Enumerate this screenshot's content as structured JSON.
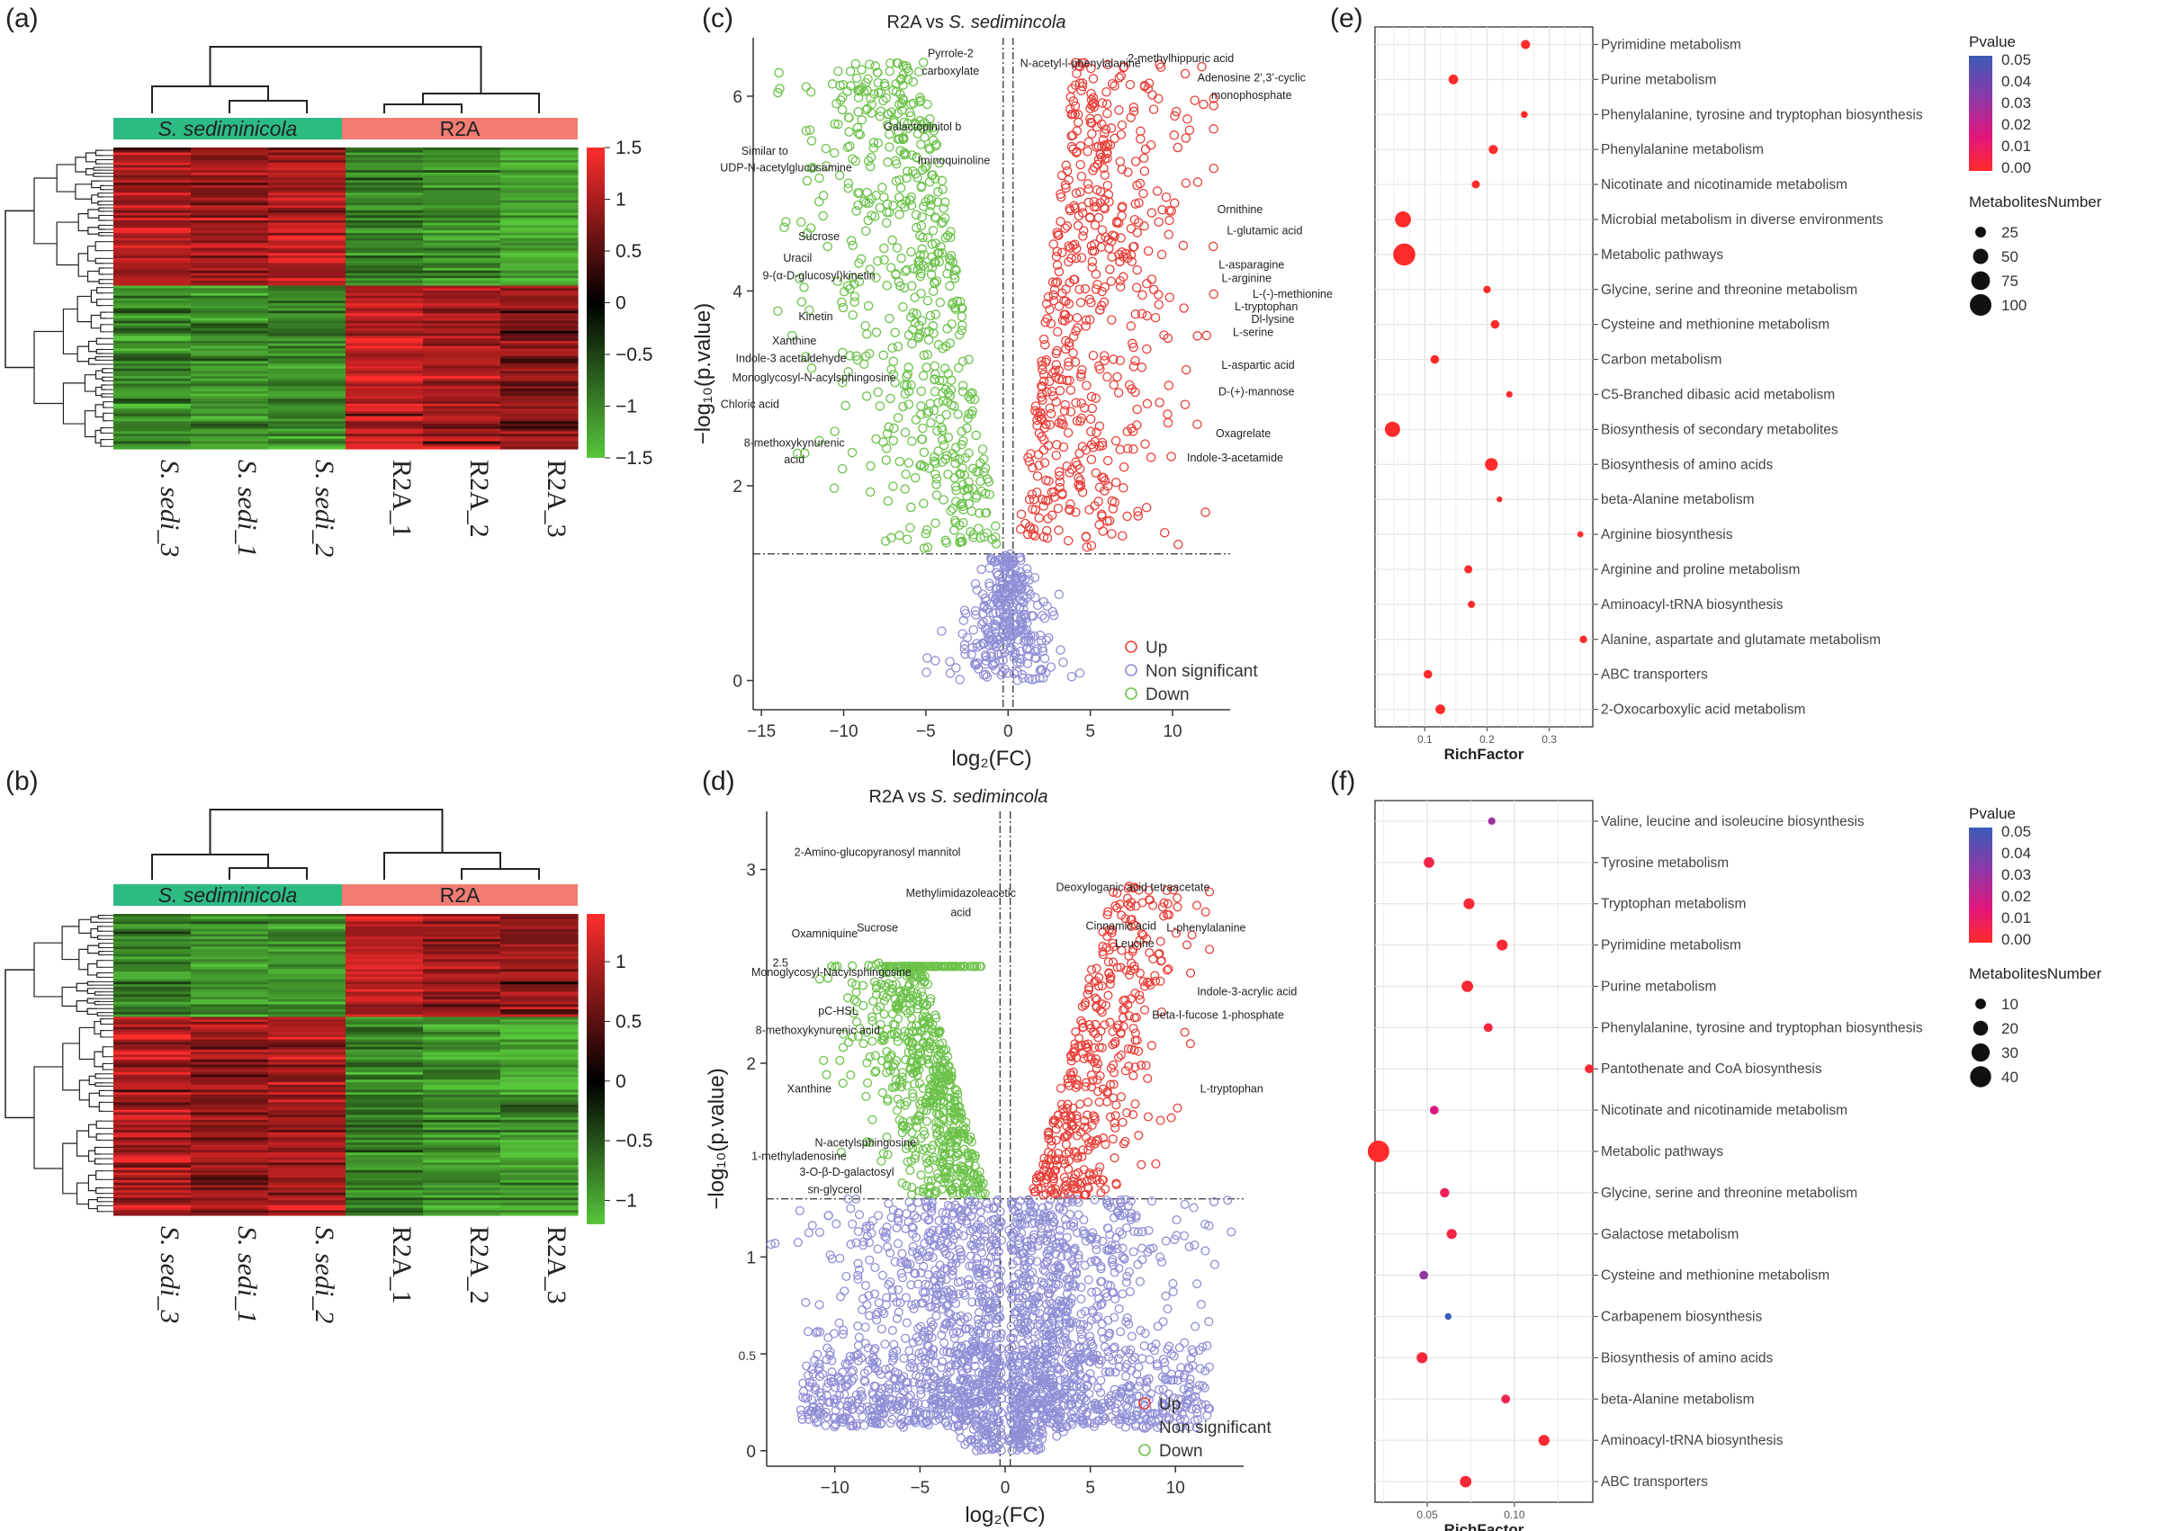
{
  "chart_data": [
    {
      "id": "a",
      "panel_label": "(a)",
      "type": "heatmap",
      "groups": [
        {
          "label": "S. sediminicola",
          "color": "#2dbb84"
        },
        {
          "label": "R2A",
          "color": "#f07c74"
        }
      ],
      "columns": [
        "S. sedi_3",
        "S. sedi_1",
        "S. sedi_2",
        "R2A_1",
        "R2A_2",
        "R2A_3"
      ],
      "colorbar": {
        "ticks": [
          "1.5",
          "1",
          "0.5",
          "0",
          "−0.5",
          "−1",
          "−1.5"
        ],
        "min": -1.5,
        "max": 1.5
      },
      "row_split_fraction": 0.46
    },
    {
      "id": "b",
      "panel_label": "(b)",
      "type": "heatmap",
      "groups": [
        {
          "label": "S. sediminicola",
          "color": "#2dbb84"
        },
        {
          "label": "R2A",
          "color": "#f07c74"
        }
      ],
      "columns": [
        "S. sedi_3",
        "S. sedi_1",
        "S. sedi_2",
        "R2A_1",
        "R2A_2",
        "R2A_3"
      ],
      "colorbar": {
        "ticks": [
          "1",
          "0.5",
          "0",
          "−0.5",
          "−1"
        ],
        "min": -1.2,
        "max": 1.4
      },
      "row_split_fraction": 0.34
    },
    {
      "id": "c",
      "panel_label": "(c)",
      "type": "scatter",
      "title_prefix": "R2A vs ",
      "title_species": "S. sedimincola",
      "xlabel": "log₂(FC)",
      "ylabel": "−log₁₀(p.value)",
      "xlim": [
        -15.5,
        13.5
      ],
      "ylim": [
        -0.3,
        6.6
      ],
      "xticks": [
        "−15",
        "−10",
        "−5",
        "0",
        "5",
        "10"
      ],
      "yticks": [
        "0",
        "2",
        "4",
        "6"
      ],
      "hline": 1.3,
      "vlines": [
        -0.3,
        0.3
      ],
      "legend": [
        {
          "label": "Up",
          "color": "#e8403a"
        },
        {
          "label": "Non significant",
          "color": "#8f8fd6"
        },
        {
          "label": "Down",
          "color": "#6cc24a"
        }
      ],
      "counts": {
        "up": 560,
        "down": 600,
        "ns": 330
      },
      "annotations": [
        {
          "text": "Pyrrole-2",
          "x": -3.5,
          "y": 6.4
        },
        {
          "text": "carboxylate",
          "x": -3.5,
          "y": 6.22
        },
        {
          "text": "N-acetyl-l-phenylalanine",
          "x": 4.4,
          "y": 6.3
        },
        {
          "text": "2-methylhippuric acid",
          "x": 10.5,
          "y": 6.35
        },
        {
          "text": "Adenosine 2’,3’-cyclic",
          "x": 14.8,
          "y": 6.15
        },
        {
          "text": "monophosphate",
          "x": 14.8,
          "y": 5.97
        },
        {
          "text": "Galactopinitol b",
          "x": -5.2,
          "y": 5.65
        },
        {
          "text": "Similar to",
          "x": -14.8,
          "y": 5.4
        },
        {
          "text": "UDP-N-acetylglucosamine",
          "x": -13.5,
          "y": 5.23
        },
        {
          "text": "Iminoquinoline",
          "x": -3.3,
          "y": 5.3
        },
        {
          "text": "Ornithine",
          "x": 14.1,
          "y": 4.8
        },
        {
          "text": "L-glutamic acid",
          "x": 15.6,
          "y": 4.58
        },
        {
          "text": "Sucrose",
          "x": -11.5,
          "y": 4.52
        },
        {
          "text": "Uracil",
          "x": -12.8,
          "y": 4.3
        },
        {
          "text": "9-(α-D-glucosyl)kinetin",
          "x": -11.5,
          "y": 4.12
        },
        {
          "text": "L-asparagine",
          "x": 14.8,
          "y": 4.23
        },
        {
          "text": "L-arginine",
          "x": 14.5,
          "y": 4.09
        },
        {
          "text": "L-(-)-methionine",
          "x": 17.3,
          "y": 3.93
        },
        {
          "text": "L-tryptophan",
          "x": 15.7,
          "y": 3.8
        },
        {
          "text": "Dl-lysine",
          "x": 16.1,
          "y": 3.67
        },
        {
          "text": "L-serine",
          "x": 14.9,
          "y": 3.54
        },
        {
          "text": "Kinetin",
          "x": -11.7,
          "y": 3.7
        },
        {
          "text": "Xanthine",
          "x": -13.0,
          "y": 3.45
        },
        {
          "text": "Indole-3 acetaldehyde",
          "x": -13.2,
          "y": 3.27
        },
        {
          "text": "L-aspartic acid",
          "x": 15.2,
          "y": 3.2
        },
        {
          "text": "Monoglycosyl-N-acylsphingosine",
          "x": -11.8,
          "y": 3.07
        },
        {
          "text": "D-(+)-mannose",
          "x": 15.1,
          "y": 2.93
        },
        {
          "text": "Chloric acid",
          "x": -15.7,
          "y": 2.8
        },
        {
          "text": "Oxagrelate",
          "x": 14.3,
          "y": 2.5
        },
        {
          "text": "8-methoxykynurenic",
          "x": -13.0,
          "y": 2.4
        },
        {
          "text": "acid",
          "x": -13.0,
          "y": 2.23
        },
        {
          "text": "Indole-3-acetamide",
          "x": 13.8,
          "y": 2.25
        }
      ]
    },
    {
      "id": "d",
      "panel_label": "(d)",
      "type": "scatter",
      "title_prefix": "R2A vs ",
      "title_species": "S. sedimincola",
      "xlabel": "log₂(FC)",
      "ylabel": "−log₁₀(p.value)",
      "xlim": [
        -14,
        14
      ],
      "ylim": [
        -0.08,
        3.3
      ],
      "xticks": [
        "−10",
        "−5",
        "0",
        "5",
        "10"
      ],
      "yticks": [
        "0",
        "0.5",
        "1",
        "2",
        "2.5",
        "3"
      ],
      "hline": 1.3,
      "vlines": [
        -0.3,
        0.3
      ],
      "legend": [
        {
          "label": "Up",
          "color": "#e8403a"
        },
        {
          "label": "Non significant",
          "color": "#8f8fd6"
        },
        {
          "label": "Down",
          "color": "#6cc24a"
        }
      ],
      "counts": {
        "up": 420,
        "down": 700,
        "ns": 2200
      },
      "annotations": [
        {
          "text": "2-Amino-glucopyranosyl mannitol",
          "x": -7.5,
          "y": 3.07
        },
        {
          "text": "Methylimidazoleacetic",
          "x": -2.6,
          "y": 2.86
        },
        {
          "text": "acid",
          "x": -2.6,
          "y": 2.76
        },
        {
          "text": "Deoxyloganic acid tetraacetate",
          "x": 7.5,
          "y": 2.89
        },
        {
          "text": "Oxamniquine",
          "x": -10.6,
          "y": 2.65
        },
        {
          "text": "Sucrose",
          "x": -7.5,
          "y": 2.68
        },
        {
          "text": "Cinnamic acid",
          "x": 6.8,
          "y": 2.69
        },
        {
          "text": "L-phenylalanine",
          "x": 11.8,
          "y": 2.68
        },
        {
          "text": "Leucine",
          "x": 7.6,
          "y": 2.6
        },
        {
          "text": "2.5",
          "x": -13.2,
          "y": 2.5
        },
        {
          "text": "Monoglycosyl-Nacylsphingosine",
          "x": -10.2,
          "y": 2.45
        },
        {
          "text": "Indole-3-acrylic acid",
          "x": 14.2,
          "y": 2.35
        },
        {
          "text": "pC-HSL",
          "x": -9.8,
          "y": 2.25
        },
        {
          "text": "Beta-l-fucose 1-phosphate",
          "x": 12.5,
          "y": 2.23
        },
        {
          "text": "8-methoxykynurenic acid",
          "x": -11.0,
          "y": 2.15
        },
        {
          "text": "L-tryptophan",
          "x": 13.3,
          "y": 1.85
        },
        {
          "text": "Xanthine",
          "x": -11.5,
          "y": 1.85
        },
        {
          "text": "N-acetylsphingosine",
          "x": -8.2,
          "y": 1.57
        },
        {
          "text": "1-methyladenosine",
          "x": -12.1,
          "y": 1.5
        },
        {
          "text": "3-O-β-D-galactosyl",
          "x": -9.3,
          "y": 1.42
        },
        {
          "text": "sn-glycerol",
          "x": -10.0,
          "y": 1.33
        }
      ]
    },
    {
      "id": "e",
      "panel_label": "(e)",
      "type": "scatter",
      "xlabel": "RichFactor",
      "xlim": [
        0.02,
        0.37
      ],
      "xticks": [
        0.1,
        0.2,
        0.3
      ],
      "xtick_labels": [
        "0.1",
        "0.2",
        "0.3"
      ],
      "color_legend": {
        "title": "Pvalue",
        "ticks": [
          "0.05",
          "0.04",
          "0.03",
          "0.02",
          "0.01",
          "0.00"
        ]
      },
      "size_legend": {
        "title": "MetabolitesNumber",
        "values": [
          25,
          50,
          75,
          100
        ]
      },
      "pathways": [
        {
          "name": "Pyrimidine metabolism",
          "rich": 0.262,
          "n": 18,
          "p": 0.0
        },
        {
          "name": "Purine metabolism",
          "rich": 0.146,
          "n": 20,
          "p": 0.0
        },
        {
          "name": "Phenylalanine, tyrosine and tryptophan biosynthesis",
          "rich": 0.26,
          "n": 10,
          "p": 0.0
        },
        {
          "name": "Phenylalanine metabolism",
          "rich": 0.21,
          "n": 18,
          "p": 0.0
        },
        {
          "name": "Nicotinate and nicotinamide metabolism",
          "rich": 0.182,
          "n": 14,
          "p": 0.0
        },
        {
          "name": "Microbial metabolism in diverse environments",
          "rich": 0.065,
          "n": 55,
          "p": 0.0
        },
        {
          "name": "Metabolic pathways",
          "rich": 0.067,
          "n": 105,
          "p": 0.0
        },
        {
          "name": "Glycine, serine and threonine metabolism",
          "rich": 0.2,
          "n": 12,
          "p": 0.0
        },
        {
          "name": "Cysteine and methionine metabolism",
          "rich": 0.213,
          "n": 16,
          "p": 0.0
        },
        {
          "name": "Carbon metabolism",
          "rich": 0.116,
          "n": 16,
          "p": 0.0
        },
        {
          "name": "C5-Branched dibasic acid metabolism",
          "rich": 0.236,
          "n": 9,
          "p": 0.0
        },
        {
          "name": "Biosynthesis of secondary metabolites",
          "rich": 0.048,
          "n": 50,
          "p": 0.0
        },
        {
          "name": "Biosynthesis of amino acids",
          "rich": 0.207,
          "n": 35,
          "p": 0.0
        },
        {
          "name": "beta-Alanine metabolism",
          "rich": 0.22,
          "n": 7,
          "p": 0.0
        },
        {
          "name": "Arginine biosynthesis",
          "rich": 0.35,
          "n": 8,
          "p": 0.0
        },
        {
          "name": "Arginine and proline metabolism",
          "rich": 0.17,
          "n": 14,
          "p": 0.0
        },
        {
          "name": "Aminoacyl-tRNA biosynthesis",
          "rich": 0.175,
          "n": 11,
          "p": 0.0
        },
        {
          "name": "Alanine, aspartate and glutamate metabolism",
          "rich": 0.355,
          "n": 12,
          "p": 0.0
        },
        {
          "name": "ABC transporters",
          "rich": 0.105,
          "n": 16,
          "p": 0.0
        },
        {
          "name": "2-Oxocarboxylic acid metabolism",
          "rich": 0.125,
          "n": 20,
          "p": 0.0
        }
      ]
    },
    {
      "id": "f",
      "panel_label": "(f)",
      "type": "scatter",
      "xlabel": "RichFactor",
      "xlim": [
        0.02,
        0.145
      ],
      "xticks": [
        0.05,
        0.1
      ],
      "xtick_labels": [
        "0.05",
        "0.10"
      ],
      "color_legend": {
        "title": "Pvalue",
        "ticks": [
          "0.05",
          "0.04",
          "0.03",
          "0.02",
          "0.01",
          "0.00"
        ]
      },
      "size_legend": {
        "title": "MetabolitesNumber",
        "values": [
          10,
          20,
          30,
          40
        ]
      },
      "pathways": [
        {
          "name": "Valine, leucine and isoleucine biosynthesis",
          "rich": 0.087,
          "n": 5,
          "p": 0.03
        },
        {
          "name": "Tyrosine metabolism",
          "rich": 0.051,
          "n": 10,
          "p": 0.006
        },
        {
          "name": "Tryptophan metabolism",
          "rich": 0.074,
          "n": 11,
          "p": 0.002
        },
        {
          "name": "Pyrimidine metabolism",
          "rich": 0.093,
          "n": 11,
          "p": 0.002
        },
        {
          "name": "Purine metabolism",
          "rich": 0.073,
          "n": 12,
          "p": 0.002
        },
        {
          "name": "Phenylalanine, tyrosine and tryptophan biosynthesis",
          "rich": 0.085,
          "n": 7,
          "p": 0.004
        },
        {
          "name": "Pantothenate and CoA biosynthesis",
          "rich": 0.143,
          "n": 7,
          "p": 0.002
        },
        {
          "name": "Nicotinate and nicotinamide metabolism",
          "rich": 0.054,
          "n": 7,
          "p": 0.018
        },
        {
          "name": "Metabolic pathways",
          "rich": 0.022,
          "n": 42,
          "p": 0.0
        },
        {
          "name": "Glycine, serine and threonine metabolism",
          "rich": 0.06,
          "n": 8,
          "p": 0.01
        },
        {
          "name": "Galactose metabolism",
          "rich": 0.064,
          "n": 9,
          "p": 0.005
        },
        {
          "name": "Cysteine and methionine metabolism",
          "rich": 0.048,
          "n": 7,
          "p": 0.032
        },
        {
          "name": "Carbapenem biosynthesis",
          "rich": 0.062,
          "n": 4,
          "p": 0.05
        },
        {
          "name": "Biosynthesis of amino acids",
          "rich": 0.047,
          "n": 11,
          "p": 0.003
        },
        {
          "name": "beta-Alanine metabolism",
          "rich": 0.095,
          "n": 7,
          "p": 0.008
        },
        {
          "name": "Aminoacyl-tRNA biosynthesis",
          "rich": 0.117,
          "n": 11,
          "p": 0.002
        },
        {
          "name": "ABC transporters",
          "rich": 0.072,
          "n": 12,
          "p": 0.002
        }
      ]
    }
  ]
}
